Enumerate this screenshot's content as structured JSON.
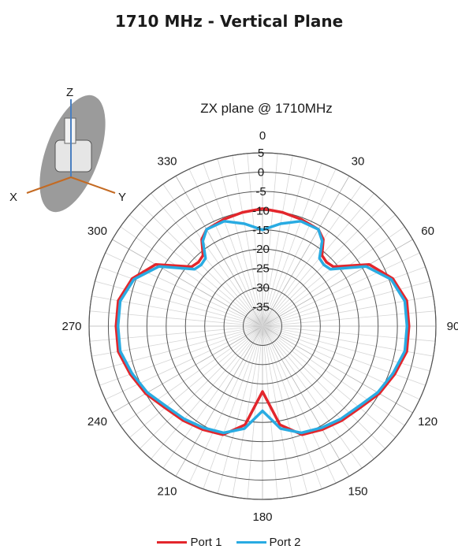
{
  "page": {
    "title": "1710 MHz - Vertical Plane"
  },
  "inset": {
    "axis_labels": [
      "Z",
      "X",
      "Y"
    ],
    "icon": "antenna-orientation-icon"
  },
  "chart_data": {
    "type": "polar",
    "title": "ZX plane @ 1710MHz",
    "angle_unit": "deg",
    "angle_ticks": [
      0,
      30,
      60,
      90,
      120,
      150,
      180,
      210,
      240,
      270,
      300,
      330
    ],
    "radial_ticks": [
      5,
      0,
      -5,
      -10,
      -15,
      -20,
      -25,
      -30,
      -35
    ],
    "rlim": [
      -40,
      5
    ],
    "grid": true,
    "legend_position": "bottom",
    "series": [
      {
        "name": "Port 1",
        "color": "#e3262c",
        "angles": [
          0,
          10,
          20,
          30,
          35,
          40,
          45,
          50,
          60,
          70,
          80,
          90,
          100,
          110,
          120,
          130,
          140,
          150,
          160,
          170,
          180,
          190,
          200,
          210,
          220,
          230,
          240,
          250,
          260,
          270,
          280,
          290,
          300,
          310,
          315,
          320,
          325,
          330,
          340,
          350
        ],
        "values": [
          -9.5,
          -10,
          -10.5,
          -11,
          -12.5,
          -16,
          -16.5,
          -16,
          -8,
          -4,
          -2,
          -2,
          -2,
          -3.5,
          -5,
          -7,
          -8,
          -9,
          -10,
          -14,
          -23,
          -14,
          -10,
          -9,
          -8,
          -7,
          -5,
          -3.5,
          -2,
          -2,
          -2,
          -4,
          -8,
          -16,
          -16.5,
          -16,
          -12.5,
          -11,
          -10.5,
          -10
        ]
      },
      {
        "name": "Port 2",
        "color": "#29abe2",
        "angles": [
          0,
          10,
          20,
          30,
          35,
          40,
          45,
          50,
          60,
          70,
          80,
          90,
          100,
          110,
          120,
          130,
          140,
          150,
          160,
          170,
          180,
          190,
          200,
          210,
          220,
          230,
          240,
          250,
          260,
          270,
          280,
          290,
          300,
          310,
          315,
          320,
          325,
          330,
          340,
          350
        ],
        "values": [
          -15,
          -13,
          -11,
          -11,
          -13,
          -17,
          -17.5,
          -17,
          -9,
          -4.5,
          -2.5,
          -2.5,
          -2.5,
          -4,
          -5.5,
          -7.5,
          -8.5,
          -9.5,
          -10.5,
          -13,
          -18,
          -13,
          -10.5,
          -9.5,
          -8.5,
          -7.5,
          -5.5,
          -4,
          -2.5,
          -2.5,
          -2.5,
          -4.5,
          -9,
          -17,
          -17.5,
          -17,
          -13,
          -11,
          -11,
          -13
        ]
      }
    ]
  }
}
